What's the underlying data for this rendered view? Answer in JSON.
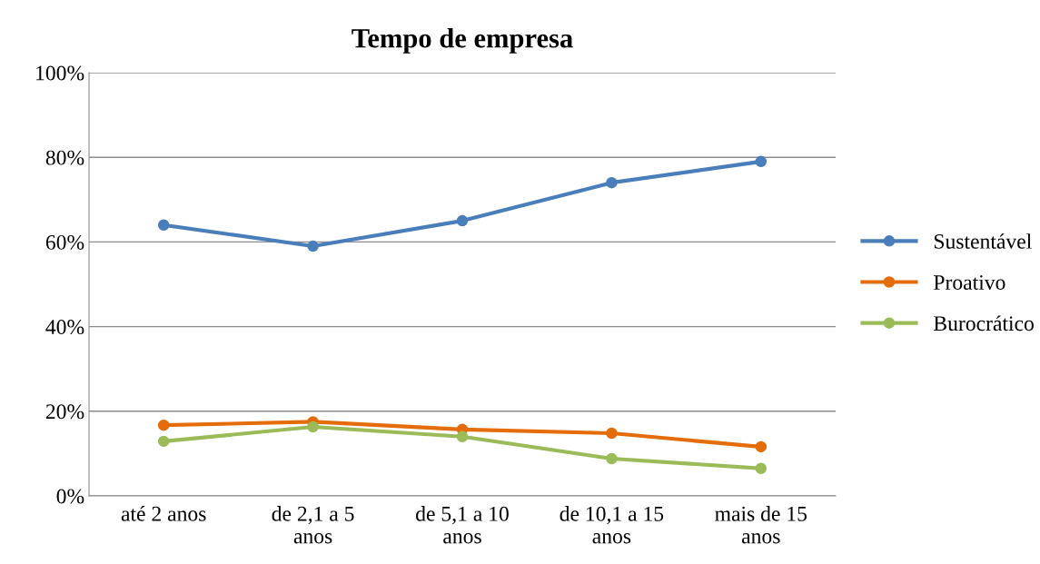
{
  "chart_data": {
    "type": "line",
    "title": "Tempo de empresa",
    "categories": [
      "até 2 anos",
      "de 2,1 a 5\nanos",
      "de 5,1 a 10\nanos",
      "de 10,1 a 15\nanos",
      "mais de 15\nanos"
    ],
    "series": [
      {
        "name": "Sustentável",
        "color": "#4a7ebb",
        "values": [
          64,
          59,
          65,
          74,
          79
        ]
      },
      {
        "name": "Proativo",
        "color": "#e46c0a",
        "values": [
          16.7,
          17.5,
          15.7,
          14.8,
          11.6
        ]
      },
      {
        "name": "Burocrático",
        "color": "#9bbb59",
        "values": [
          12.9,
          16.3,
          14,
          8.8,
          6.5
        ]
      }
    ],
    "ylim": [
      0,
      100
    ],
    "yticks": [
      {
        "value": 0,
        "label": "0%"
      },
      {
        "value": 20,
        "label": "20%"
      },
      {
        "value": 40,
        "label": "40%"
      },
      {
        "value": 60,
        "label": "60%"
      },
      {
        "value": 80,
        "label": "80%"
      },
      {
        "value": 100,
        "label": "100%"
      }
    ],
    "grid": "y",
    "legend": "right",
    "marker": "circle",
    "line_style": "solid"
  }
}
